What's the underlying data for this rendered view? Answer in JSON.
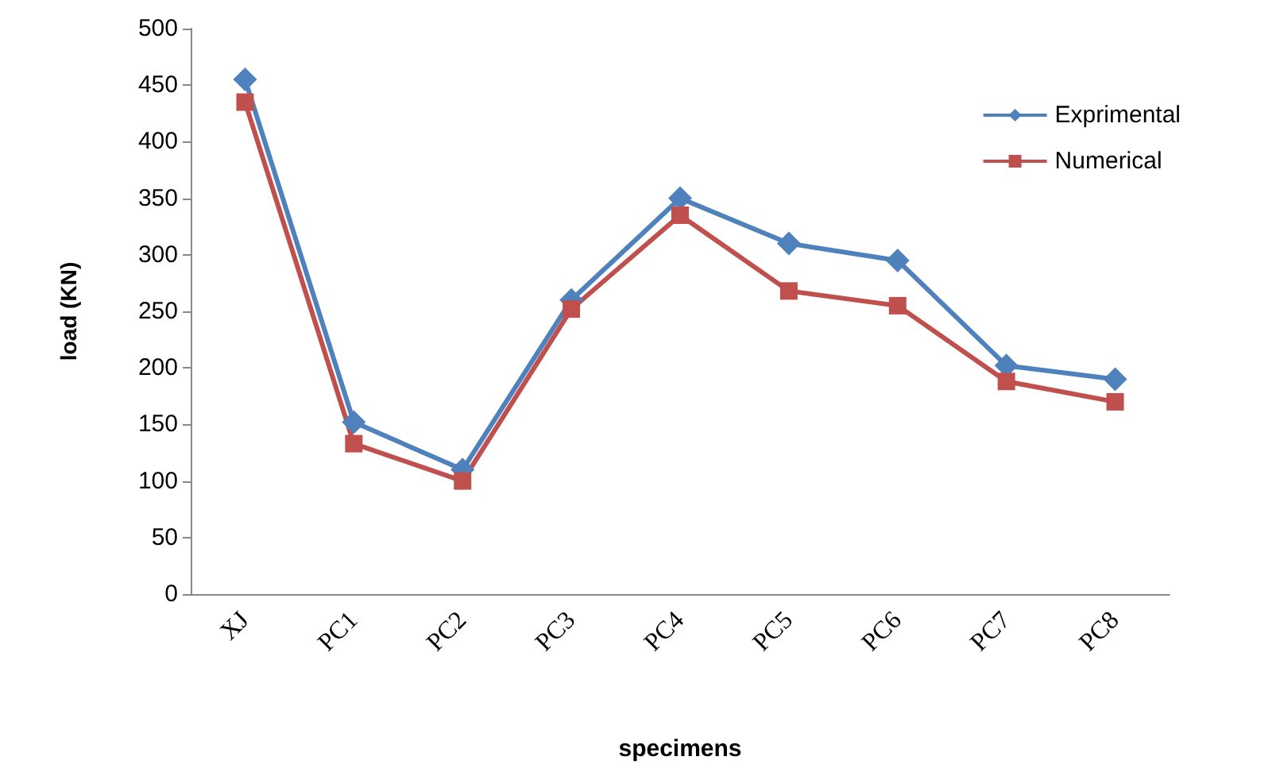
{
  "chart_data": {
    "type": "line",
    "xlabel": "specimens",
    "ylabel": "load (KN)",
    "categories": [
      "XJ",
      "PC1",
      "PC2",
      "PC3",
      "PC4",
      "PC5",
      "PC6",
      "PC7",
      "PC8"
    ],
    "series": [
      {
        "name": "Exprimental",
        "color": "#4f81bd",
        "marker": "diamond",
        "values": [
          455,
          152,
          110,
          260,
          350,
          310,
          295,
          202,
          190
        ]
      },
      {
        "name": "Numerical",
        "color": "#c0504d",
        "marker": "square",
        "values": [
          435,
          133,
          100,
          252,
          335,
          268,
          255,
          188,
          170
        ]
      }
    ],
    "ylim": [
      0,
      500
    ],
    "yticks": [
      0,
      50,
      100,
      150,
      200,
      250,
      300,
      350,
      400,
      450,
      500
    ],
    "grid": false,
    "legend": "top right"
  }
}
